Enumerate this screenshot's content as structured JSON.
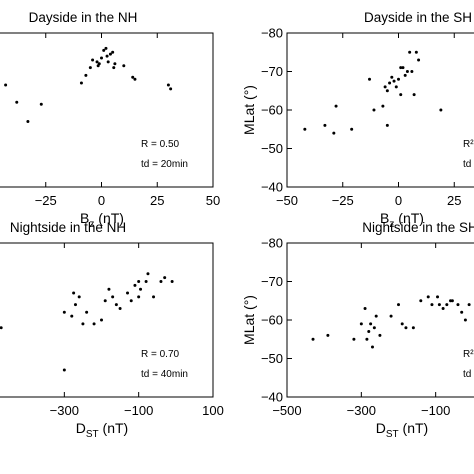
{
  "chart_data": [
    {
      "type": "scatter",
      "title": "Dayside in the NH",
      "xlabel": "B",
      "xlabel_sub": "z",
      "xlabel_unit": " (nT)",
      "ylabel": "",
      "xlim": [
        -50,
        50
      ],
      "ylim": [
        -40,
        -80
      ],
      "xticks": [
        "−25",
        "0",
        "25",
        "50"
      ],
      "xtick_values": [
        -25,
        0,
        25,
        50
      ],
      "yticks": [],
      "annotations": [
        "R = 0.50",
        "td = 20min"
      ],
      "points": [
        [
          -43,
          -66.5
        ],
        [
          -38,
          -62
        ],
        [
          -33,
          -57
        ],
        [
          -27,
          -61.5
        ],
        [
          -9,
          -67
        ],
        [
          -7,
          -69
        ],
        [
          -5,
          -71
        ],
        [
          -4,
          -73
        ],
        [
          -2,
          -72.5
        ],
        [
          -1,
          -72
        ],
        [
          -1.5,
          -71.5
        ],
        [
          0,
          -73.5
        ],
        [
          1,
          -75.5
        ],
        [
          2,
          -76
        ],
        [
          2.5,
          -74
        ],
        [
          3,
          -72.5
        ],
        [
          4,
          -74.5
        ],
        [
          5,
          -75
        ],
        [
          5.5,
          -71
        ],
        [
          6,
          -72
        ],
        [
          10,
          -71.5
        ],
        [
          14,
          -68.5
        ],
        [
          15,
          -68
        ],
        [
          30,
          -66.5
        ],
        [
          31,
          -65.5
        ]
      ]
    },
    {
      "type": "scatter",
      "title": "Dayside in the SH",
      "xlabel": "B",
      "xlabel_sub": "z",
      "xlabel_unit": " (nT)",
      "ylabel": "MLat (°)",
      "xlim": [
        -50,
        50
      ],
      "ylim": [
        -40,
        -80
      ],
      "xticks": [
        "−50",
        "−25",
        "0",
        "25"
      ],
      "xtick_values": [
        -50,
        -25,
        0,
        25
      ],
      "yticks": [
        "−40",
        "−50",
        "−60",
        "−70",
        "−80"
      ],
      "ytick_values": [
        -40,
        -50,
        -60,
        -70,
        -80
      ],
      "annotations": [
        "R²",
        "td"
      ],
      "points": [
        [
          -42,
          -55
        ],
        [
          -33,
          -56
        ],
        [
          -29,
          -54
        ],
        [
          -28,
          -61
        ],
        [
          -21,
          -55
        ],
        [
          -13,
          -68
        ],
        [
          -11,
          -60
        ],
        [
          -7,
          -61
        ],
        [
          -6,
          -66
        ],
        [
          -5,
          -65
        ],
        [
          -4,
          -67
        ],
        [
          -3,
          -68.5
        ],
        [
          -2,
          -67.5
        ],
        [
          -1,
          -66
        ],
        [
          0,
          -68
        ],
        [
          1,
          -71
        ],
        [
          1,
          -64
        ],
        [
          2,
          -71
        ],
        [
          3,
          -69
        ],
        [
          4,
          -70
        ],
        [
          5,
          -75
        ],
        [
          6,
          -70
        ],
        [
          7,
          -64
        ],
        [
          8,
          -75
        ],
        [
          9,
          -73
        ],
        [
          -5,
          -56
        ],
        [
          19,
          -60
        ]
      ]
    },
    {
      "type": "scatter",
      "title": "Nightside in the NH",
      "xlabel": "D",
      "xlabel_sub": "ST",
      "xlabel_unit": " (nT)",
      "ylabel": "",
      "xlim": [
        -500,
        100
      ],
      "ylim": [
        -40,
        -80
      ],
      "xticks": [
        "−300",
        "−100",
        "100"
      ],
      "xtick_values": [
        -300,
        -100,
        100
      ],
      "yticks": [],
      "annotations": [
        "R = 0.70",
        "td = 40min"
      ],
      "points": [
        [
          -470,
          -58
        ],
        [
          -300,
          -47
        ],
        [
          -300,
          -62
        ],
        [
          -280,
          -61
        ],
        [
          -275,
          -67
        ],
        [
          -270,
          -64
        ],
        [
          -260,
          -66
        ],
        [
          -250,
          -59
        ],
        [
          -240,
          -62
        ],
        [
          -220,
          -59
        ],
        [
          -200,
          -60
        ],
        [
          -190,
          -65
        ],
        [
          -180,
          -68
        ],
        [
          -170,
          -66
        ],
        [
          -160,
          -64
        ],
        [
          -150,
          -63
        ],
        [
          -130,
          -67
        ],
        [
          -120,
          -65
        ],
        [
          -110,
          -69
        ],
        [
          -100,
          -70
        ],
        [
          -95,
          -68
        ],
        [
          -80,
          -70
        ],
        [
          -75,
          -72
        ],
        [
          -60,
          -66
        ],
        [
          -40,
          -70
        ],
        [
          -30,
          -71
        ],
        [
          -10,
          -70
        ],
        [
          -100,
          -66
        ]
      ]
    },
    {
      "type": "scatter",
      "title": "Nightside in the SH",
      "xlabel": "D",
      "xlabel_sub": "ST",
      "xlabel_unit": " (nT)",
      "ylabel": "MLat (°)",
      "xlim": [
        -500,
        100
      ],
      "ylim": [
        -40,
        -80
      ],
      "xticks": [
        "−500",
        "−300",
        "−100"
      ],
      "xtick_values": [
        -500,
        -300,
        -100
      ],
      "yticks": [
        "−40",
        "−50",
        "−60",
        "−70",
        "−80"
      ],
      "ytick_values": [
        -40,
        -50,
        -60,
        -70,
        -80
      ],
      "annotations": [
        "R²",
        "td"
      ],
      "points": [
        [
          -430,
          -55
        ],
        [
          -390,
          -56
        ],
        [
          -320,
          -55
        ],
        [
          -300,
          -59
        ],
        [
          -290,
          -63
        ],
        [
          -285,
          -55
        ],
        [
          -280,
          -57
        ],
        [
          -275,
          -59
        ],
        [
          -270,
          -53
        ],
        [
          -265,
          -58
        ],
        [
          -260,
          -61
        ],
        [
          -250,
          -56
        ],
        [
          -220,
          -61
        ],
        [
          -200,
          -64
        ],
        [
          -190,
          -59
        ],
        [
          -180,
          -58
        ],
        [
          -160,
          -58
        ],
        [
          -140,
          -65
        ],
        [
          -120,
          -66
        ],
        [
          -110,
          -64
        ],
        [
          -95,
          -66
        ],
        [
          -90,
          -64
        ],
        [
          -80,
          -63
        ],
        [
          -70,
          -64
        ],
        [
          -60,
          -65
        ],
        [
          -55,
          -65
        ],
        [
          -40,
          -64
        ],
        [
          -30,
          -62
        ],
        [
          -20,
          -60
        ],
        [
          -10,
          -64
        ]
      ]
    }
  ]
}
